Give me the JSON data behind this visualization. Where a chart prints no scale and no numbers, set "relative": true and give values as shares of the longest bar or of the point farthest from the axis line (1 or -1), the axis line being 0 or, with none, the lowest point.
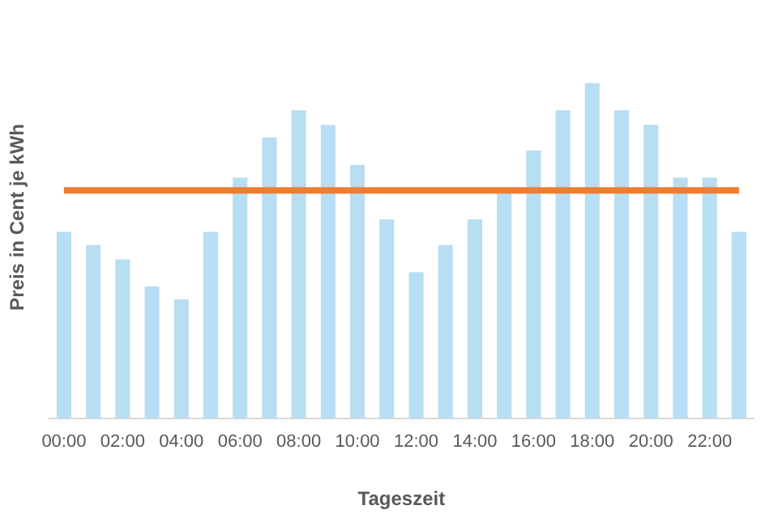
{
  "chart_data": {
    "type": "bar",
    "relative": true,
    "xlabel": "Tageszeit",
    "ylabel": "Preis in Cent je kWh",
    "categories": [
      "00:00",
      null,
      "02:00",
      null,
      "04:00",
      null,
      "06:00",
      null,
      "08:00",
      null,
      "10:00",
      null,
      "12:00",
      null,
      "14:00",
      null,
      "16:00",
      null,
      "18:00",
      null,
      "20:00",
      null,
      "22:00",
      null
    ],
    "series": [
      {
        "color": "#b7def3",
        "values": [
          0.556,
          0.517,
          0.474,
          0.393,
          0.355,
          0.556,
          0.718,
          0.838,
          0.919,
          0.876,
          0.756,
          0.594,
          0.436,
          0.517,
          0.594,
          0.675,
          0.799,
          0.919,
          1,
          0.919,
          0.876,
          0.718,
          0.718,
          0.556
        ]
      },
      {
        "type": "line",
        "color": "#ed7d31",
        "values": [
          0.68,
          0.68,
          0.68,
          0.68,
          0.68,
          0.68,
          0.68,
          0.68,
          0.68,
          0.68,
          0.68,
          0.68,
          0.68,
          0.68,
          0.68,
          0.68,
          0.68,
          0.68,
          0.68,
          0.68,
          0.68,
          0.68,
          0.68,
          0.68
        ]
      }
    ],
    "grid": false,
    "legend": false,
    "marker": "none"
  }
}
